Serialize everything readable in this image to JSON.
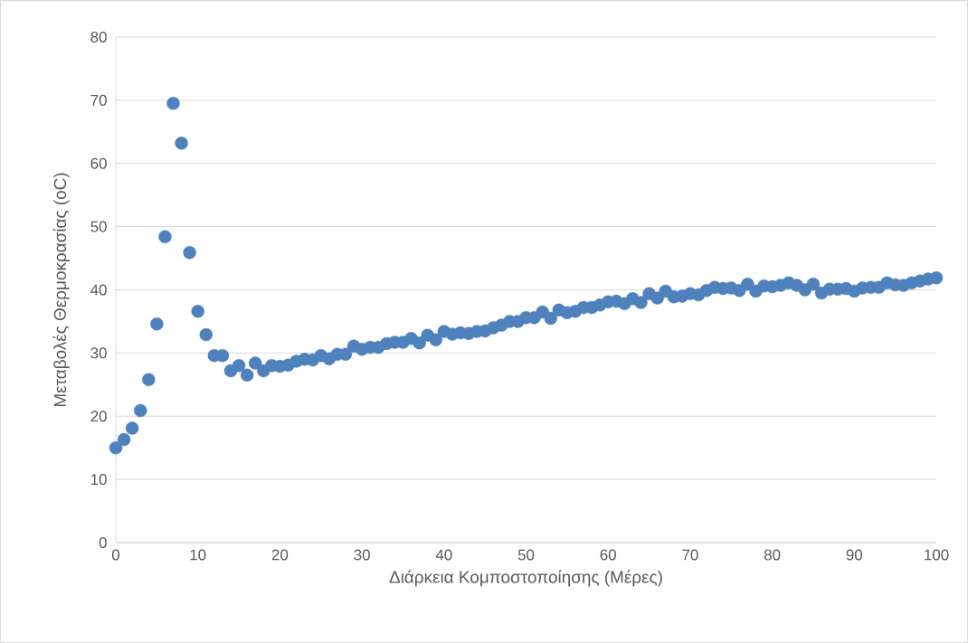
{
  "chart_data": {
    "type": "scatter",
    "xlabel": "Διάρκεια Κομποστοποίησης (Μέρες)",
    "ylabel": "Μεταβολές Θερμοκρασίας (oC)",
    "x": [
      0,
      1,
      2,
      3,
      4,
      5,
      6,
      7,
      8,
      9,
      10,
      11,
      12,
      13,
      14,
      15,
      16,
      17,
      18,
      19,
      20,
      21,
      22,
      23,
      24,
      25,
      26,
      27,
      28,
      29,
      30,
      31,
      32,
      33,
      34,
      35,
      36,
      37,
      38,
      39,
      40,
      41,
      42,
      43,
      44,
      45,
      46,
      47,
      48,
      49,
      50,
      51,
      52,
      53,
      54,
      55,
      56,
      57,
      58,
      59,
      60,
      61,
      62,
      63,
      64,
      65,
      66,
      67,
      68,
      69,
      70,
      71,
      72,
      73,
      74,
      75,
      76,
      77,
      78,
      79,
      80,
      81,
      82,
      83,
      84,
      85,
      86,
      87,
      88,
      89,
      90,
      91,
      92,
      93,
      94,
      95,
      96,
      97,
      98,
      99,
      100
    ],
    "series": [
      {
        "color": "#4f81bd",
        "values": [
          15.0,
          16.3,
          18.1,
          20.9,
          25.8,
          34.6,
          48.4,
          69.5,
          63.2,
          45.9,
          36.6,
          32.9,
          29.6,
          29.6,
          27.2,
          28.0,
          26.5,
          28.4,
          27.2,
          28.0,
          27.9,
          28.1,
          28.7,
          29.0,
          28.9,
          29.6,
          29.1,
          29.8,
          29.8,
          31.1,
          30.6,
          30.9,
          30.9,
          31.5,
          31.7,
          31.7,
          32.3,
          31.6,
          32.8,
          32.1,
          33.4,
          33.0,
          33.2,
          33.1,
          33.4,
          33.5,
          34.0,
          34.4,
          35.0,
          35.0,
          35.6,
          35.6,
          36.5,
          35.5,
          36.8,
          36.4,
          36.6,
          37.2,
          37.2,
          37.6,
          38.1,
          38.2,
          37.8,
          38.6,
          38.0,
          39.4,
          38.7,
          39.8,
          38.9,
          39.0,
          39.4,
          39.2,
          39.9,
          40.4,
          40.2,
          40.3,
          39.9,
          40.9,
          39.8,
          40.6,
          40.5,
          40.7,
          41.1,
          40.7,
          40.0,
          40.9,
          39.5,
          40.1,
          40.1,
          40.2,
          39.8,
          40.3,
          40.4,
          40.4,
          41.1,
          40.8,
          40.7,
          41.1,
          41.4,
          41.7,
          41.9
        ]
      }
    ],
    "xlim": [
      0,
      100
    ],
    "ylim": [
      0,
      80
    ],
    "xticks": [
      0,
      10,
      20,
      30,
      40,
      50,
      60,
      70,
      80,
      90,
      100
    ],
    "yticks": [
      0,
      10,
      20,
      30,
      40,
      50,
      60,
      70,
      80
    ],
    "grid": "y",
    "marker": "circle"
  }
}
